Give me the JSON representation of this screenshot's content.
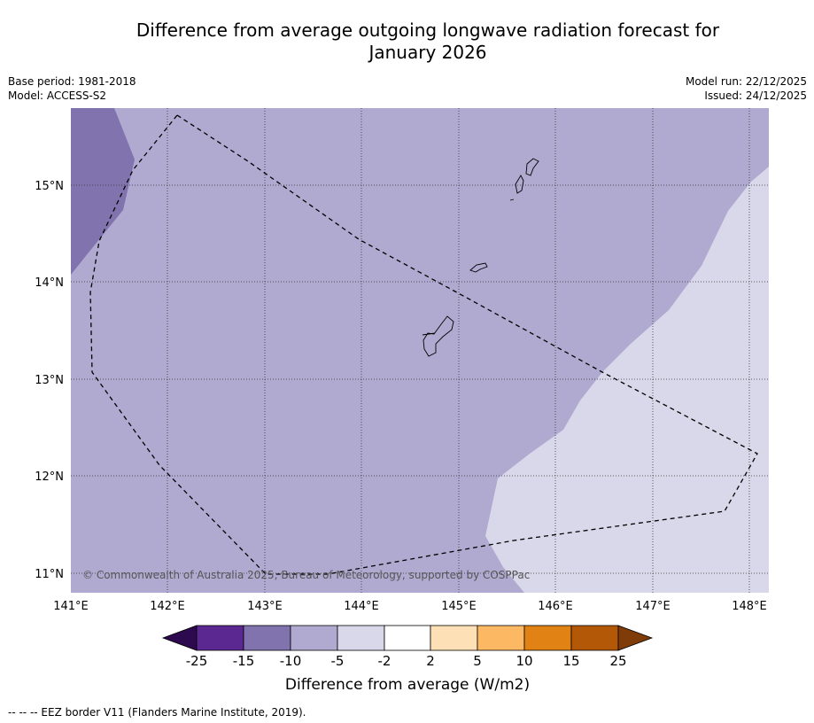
{
  "title_line1": "Difference from average outgoing longwave radiation forecast for",
  "title_line2": "January 2026",
  "meta_left": {
    "base_period": "Base period: 1981-2018",
    "model": "Model: ACCESS-S2"
  },
  "meta_right": {
    "model_run": "Model run: 22/12/2025",
    "issued": "Issued: 24/12/2025"
  },
  "map": {
    "lat_labels": [
      "15°N",
      "14°N",
      "13°N",
      "12°N",
      "11°N"
    ],
    "lon_labels": [
      "141°E",
      "142°E",
      "143°E",
      "144°E",
      "145°E",
      "146°E",
      "147°E",
      "148°E"
    ],
    "copyright": "© Commonwealth of Australia 2025, Bureau of Meteorology, supported by COSPPac"
  },
  "colorbar": {
    "ticks": [
      "-25",
      "-15",
      "-10",
      "-5",
      "-2",
      "2",
      "5",
      "10",
      "15",
      "25"
    ],
    "colors": [
      "#2d0a4f",
      "#5a2890",
      "#8073ae",
      "#b0a9d0",
      "#d8d8ea",
      "#ffffff",
      "#fde0b5",
      "#fdb863",
      "#e08214",
      "#b35806",
      "#7f3b08"
    ],
    "label": "Difference from average (W/m2)"
  },
  "footer": "--  --  -- EEZ border V11 (Flanders Marine Institute, 2019)."
}
